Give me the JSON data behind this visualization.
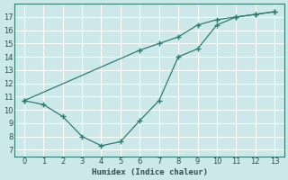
{
  "xlabel": "Humidex (Indice chaleur)",
  "background_color": "#cce8e8",
  "grid_color": "#ffffff",
  "line_color": "#2e7d6e",
  "line1_x": [
    0,
    1,
    2,
    3,
    4,
    5,
    6,
    7,
    8,
    9,
    10,
    11,
    12,
    13
  ],
  "line1_y": [
    10.7,
    10.4,
    9.5,
    8.0,
    7.3,
    7.6,
    9.2,
    10.7,
    14.0,
    14.6,
    16.4,
    17.0,
    17.2,
    17.4
  ],
  "line2_x": [
    0,
    6,
    7,
    8,
    9,
    10,
    11,
    12,
    13
  ],
  "line2_y": [
    10.7,
    14.5,
    15.0,
    15.5,
    16.4,
    16.8,
    17.0,
    17.2,
    17.4
  ],
  "xlim": [
    -0.5,
    13.5
  ],
  "ylim": [
    6.5,
    18
  ],
  "yticks": [
    7,
    8,
    9,
    10,
    11,
    12,
    13,
    14,
    15,
    16,
    17
  ],
  "xticks": [
    0,
    1,
    2,
    3,
    4,
    5,
    6,
    7,
    8,
    9,
    10,
    11,
    12,
    13
  ]
}
